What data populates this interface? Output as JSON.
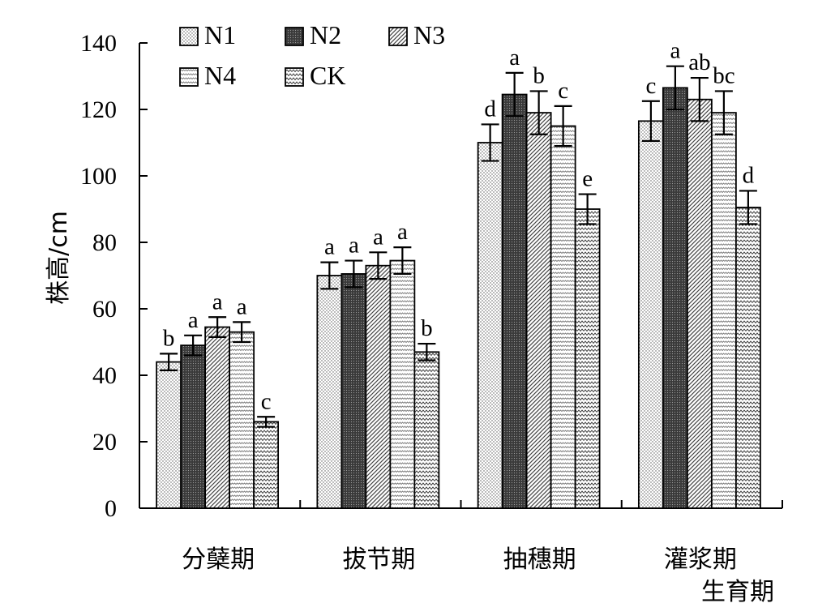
{
  "chart_data": {
    "type": "bar",
    "ylabel": "株高/cm",
    "xlabel": "生育期",
    "ylim": [
      0,
      140
    ],
    "yticks": [
      0,
      20,
      40,
      60,
      80,
      100,
      120,
      140
    ],
    "grid": false,
    "legend_position": "top-left",
    "categories": [
      "分蘖期",
      "拔节期",
      "抽穗期",
      "灌浆期"
    ],
    "series": [
      {
        "name": "N1",
        "pattern": "dots",
        "values": [
          44,
          70,
          110,
          116.5
        ],
        "errors": [
          2.5,
          4,
          5.5,
          6
        ],
        "labels": [
          "b",
          "a",
          "d",
          "c"
        ]
      },
      {
        "name": "N2",
        "pattern": "dark-dots",
        "values": [
          49,
          70.5,
          124.5,
          126.5
        ],
        "errors": [
          3,
          4,
          6.5,
          6.5
        ],
        "labels": [
          "a",
          "a",
          "a",
          "a"
        ]
      },
      {
        "name": "N3",
        "pattern": "diagonal",
        "values": [
          54.5,
          73,
          119,
          123
        ],
        "errors": [
          3,
          4,
          6.5,
          6.5
        ],
        "labels": [
          "a",
          "a",
          "b",
          "ab"
        ]
      },
      {
        "name": "N4",
        "pattern": "wave-fine",
        "values": [
          53,
          74.5,
          115,
          119
        ],
        "errors": [
          3,
          4,
          6,
          6.5
        ],
        "labels": [
          "a",
          "a",
          "c",
          "bc"
        ]
      },
      {
        "name": "CK",
        "pattern": "wave",
        "values": [
          26,
          47,
          90,
          90.5
        ],
        "errors": [
          1.5,
          2.5,
          4.5,
          5
        ],
        "labels": [
          "c",
          "b",
          "e",
          "d"
        ]
      }
    ]
  }
}
